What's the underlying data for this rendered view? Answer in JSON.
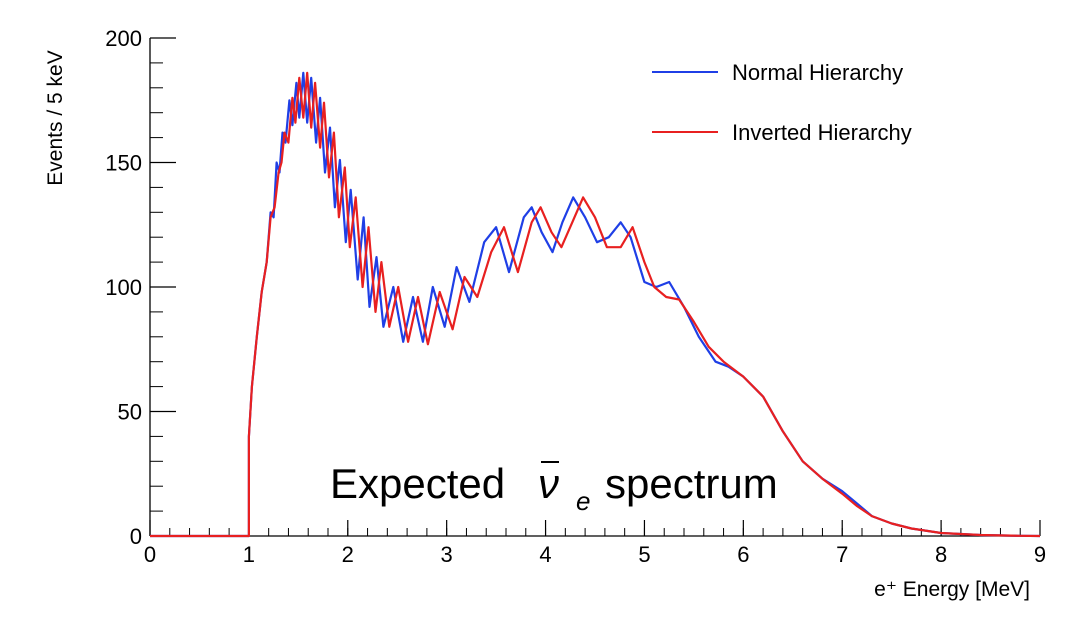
{
  "chart_data": {
    "type": "line",
    "xlabel": "e⁺ Energy [MeV]",
    "ylabel": "Events / 5 keV",
    "xlim": [
      0,
      9
    ],
    "ylim": [
      0,
      200
    ],
    "x_ticks": [
      "0",
      "1",
      "2",
      "3",
      "4",
      "5",
      "6",
      "7",
      "8",
      "9"
    ],
    "y_ticks": [
      "0",
      "50",
      "100",
      "150",
      "200"
    ],
    "legend_position": "top-right",
    "grid": false,
    "annotation": {
      "prefix": "Expected",
      "symbol": "ν",
      "subscript": "e",
      "suffix": "spectrum"
    },
    "series": [
      {
        "name": "Normal Hierarchy",
        "color": "#1f3fe6",
        "points": [
          [
            0,
            0
          ],
          [
            1.0,
            0
          ],
          [
            1.0,
            40
          ],
          [
            1.03,
            60
          ],
          [
            1.08,
            80
          ],
          [
            1.13,
            98
          ],
          [
            1.18,
            110
          ],
          [
            1.22,
            130
          ],
          [
            1.25,
            128
          ],
          [
            1.28,
            150
          ],
          [
            1.31,
            146
          ],
          [
            1.34,
            162
          ],
          [
            1.37,
            158
          ],
          [
            1.41,
            175
          ],
          [
            1.44,
            165
          ],
          [
            1.48,
            182
          ],
          [
            1.51,
            168
          ],
          [
            1.55,
            186
          ],
          [
            1.59,
            166
          ],
          [
            1.63,
            184
          ],
          [
            1.68,
            158
          ],
          [
            1.72,
            176
          ],
          [
            1.77,
            146
          ],
          [
            1.82,
            164
          ],
          [
            1.87,
            132
          ],
          [
            1.92,
            151
          ],
          [
            1.98,
            118
          ],
          [
            2.03,
            139
          ],
          [
            2.1,
            103
          ],
          [
            2.16,
            128
          ],
          [
            2.22,
            92
          ],
          [
            2.29,
            112
          ],
          [
            2.36,
            84
          ],
          [
            2.46,
            100
          ],
          [
            2.56,
            78
          ],
          [
            2.66,
            96
          ],
          [
            2.76,
            78
          ],
          [
            2.86,
            100
          ],
          [
            2.98,
            84
          ],
          [
            3.1,
            108
          ],
          [
            3.23,
            94
          ],
          [
            3.38,
            118
          ],
          [
            3.5,
            124
          ],
          [
            3.63,
            106
          ],
          [
            3.78,
            128
          ],
          [
            3.86,
            132
          ],
          [
            3.96,
            122
          ],
          [
            4.07,
            114
          ],
          [
            4.17,
            126
          ],
          [
            4.28,
            136
          ],
          [
            4.4,
            128
          ],
          [
            4.52,
            118
          ],
          [
            4.64,
            120
          ],
          [
            4.76,
            126
          ],
          [
            4.86,
            120
          ],
          [
            5.0,
            102
          ],
          [
            5.12,
            100
          ],
          [
            5.25,
            102
          ],
          [
            5.4,
            92
          ],
          [
            5.55,
            80
          ],
          [
            5.72,
            70
          ],
          [
            5.85,
            68
          ],
          [
            6.0,
            64
          ],
          [
            6.2,
            56
          ],
          [
            6.4,
            42
          ],
          [
            6.6,
            30
          ],
          [
            6.8,
            23
          ],
          [
            7.0,
            18
          ],
          [
            7.15,
            13
          ],
          [
            7.3,
            8
          ],
          [
            7.5,
            5
          ],
          [
            7.7,
            3
          ],
          [
            8.0,
            1.2
          ],
          [
            8.4,
            0.4
          ],
          [
            8.8,
            0.1
          ],
          [
            9.0,
            0
          ]
        ]
      },
      {
        "name": "Inverted Hierarchy",
        "color": "#e82020",
        "points": [
          [
            0,
            0
          ],
          [
            1.0,
            0
          ],
          [
            1.0,
            40
          ],
          [
            1.03,
            60
          ],
          [
            1.08,
            80
          ],
          [
            1.13,
            98
          ],
          [
            1.18,
            110
          ],
          [
            1.22,
            128
          ],
          [
            1.26,
            132
          ],
          [
            1.3,
            146
          ],
          [
            1.33,
            150
          ],
          [
            1.36,
            162
          ],
          [
            1.4,
            158
          ],
          [
            1.44,
            176
          ],
          [
            1.47,
            166
          ],
          [
            1.51,
            184
          ],
          [
            1.55,
            168
          ],
          [
            1.59,
            186
          ],
          [
            1.63,
            164
          ],
          [
            1.67,
            182
          ],
          [
            1.72,
            156
          ],
          [
            1.76,
            174
          ],
          [
            1.81,
            144
          ],
          [
            1.86,
            162
          ],
          [
            1.91,
            128
          ],
          [
            1.97,
            148
          ],
          [
            2.02,
            116
          ],
          [
            2.08,
            136
          ],
          [
            2.15,
            100
          ],
          [
            2.21,
            124
          ],
          [
            2.28,
            90
          ],
          [
            2.34,
            110
          ],
          [
            2.42,
            84
          ],
          [
            2.51,
            100
          ],
          [
            2.61,
            78
          ],
          [
            2.71,
            96
          ],
          [
            2.81,
            77
          ],
          [
            2.93,
            98
          ],
          [
            3.06,
            83
          ],
          [
            3.18,
            104
          ],
          [
            3.31,
            96
          ],
          [
            3.45,
            114
          ],
          [
            3.58,
            124
          ],
          [
            3.72,
            106
          ],
          [
            3.86,
            126
          ],
          [
            3.95,
            132
          ],
          [
            4.06,
            122
          ],
          [
            4.16,
            116
          ],
          [
            4.27,
            126
          ],
          [
            4.38,
            136
          ],
          [
            4.5,
            128
          ],
          [
            4.62,
            116
          ],
          [
            4.76,
            116
          ],
          [
            4.88,
            124
          ],
          [
            5.0,
            110
          ],
          [
            5.1,
            100
          ],
          [
            5.22,
            96
          ],
          [
            5.35,
            95
          ],
          [
            5.5,
            86
          ],
          [
            5.65,
            76
          ],
          [
            5.8,
            70
          ],
          [
            6.0,
            64
          ],
          [
            6.2,
            56
          ],
          [
            6.4,
            42
          ],
          [
            6.6,
            30
          ],
          [
            6.8,
            23
          ],
          [
            7.0,
            17
          ],
          [
            7.15,
            12
          ],
          [
            7.3,
            8
          ],
          [
            7.5,
            5
          ],
          [
            7.7,
            3
          ],
          [
            8.0,
            1.2
          ],
          [
            8.4,
            0.4
          ],
          [
            8.8,
            0.1
          ],
          [
            9.0,
            0
          ]
        ]
      }
    ]
  }
}
